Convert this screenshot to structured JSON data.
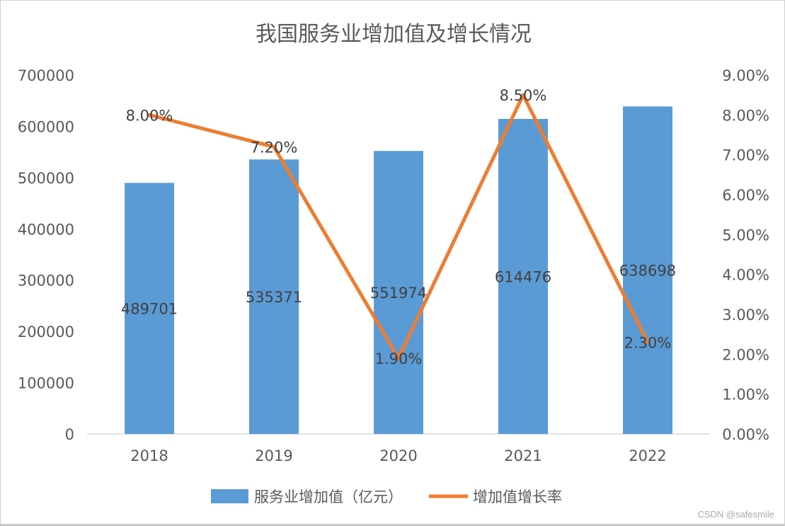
{
  "chart_data": {
    "type": "bar+line",
    "title": "我国服务业增加值及增长情况",
    "categories": [
      "2018",
      "2019",
      "2020",
      "2021",
      "2022"
    ],
    "series": [
      {
        "name": "服务业增加值（亿元）",
        "type": "bar",
        "axis": "left",
        "color": "#5B9BD5",
        "values": [
          489701,
          535371,
          551974,
          614476,
          638698
        ],
        "labels": [
          "489701",
          "535371",
          "551974",
          "614476",
          "638698"
        ]
      },
      {
        "name": "增加值增长率",
        "type": "line",
        "axis": "right",
        "color": "#ED7D31",
        "values": [
          8.0,
          7.2,
          1.9,
          8.5,
          2.3
        ],
        "labels": [
          "8.00%",
          "7.20%",
          "1.90%",
          "8.50%",
          "2.30%"
        ]
      }
    ],
    "y_left": {
      "range": [
        0,
        700000
      ],
      "ticks": [
        "0",
        "100000",
        "200000",
        "300000",
        "400000",
        "500000",
        "600000",
        "700000"
      ]
    },
    "y_right": {
      "range": [
        0,
        9
      ],
      "unit": "%",
      "ticks": [
        "0.00%",
        "1.00%",
        "2.00%",
        "3.00%",
        "4.00%",
        "5.00%",
        "6.00%",
        "7.00%",
        "8.00%",
        "9.00%"
      ]
    },
    "grid": false,
    "legend": "bottom"
  },
  "watermark": "CSDN @safesmile"
}
